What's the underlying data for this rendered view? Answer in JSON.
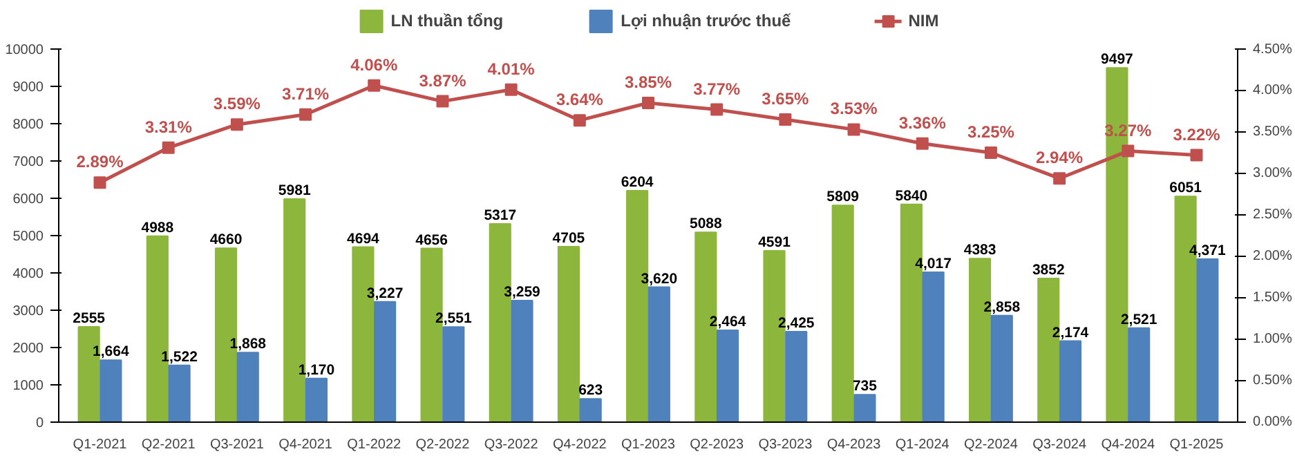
{
  "chart_data": {
    "type": "bar",
    "categories": [
      "Q1-2021",
      "Q2-2021",
      "Q3-2021",
      "Q4-2021",
      "Q1-2022",
      "Q2-2022",
      "Q3-2022",
      "Q4-2022",
      "Q1-2023",
      "Q2-2023",
      "Q3-2023",
      "Q4-2023",
      "Q1-2024",
      "Q2-2024",
      "Q3-2024",
      "Q4-2024",
      "Q1-2025"
    ],
    "series": [
      {
        "name": "LN thuần tổng",
        "color": "#8db63c",
        "values": [
          2555,
          4988,
          4660,
          5981,
          4694,
          4656,
          5317,
          4705,
          6204,
          5088,
          4591,
          5809,
          5840,
          4383,
          3852,
          9497,
          6051
        ],
        "value_labels": [
          "2555",
          "4988",
          "4660",
          "5981",
          "4694",
          "4656",
          "5317",
          "4705",
          "6204",
          "5088",
          "4591",
          "5809",
          "5840",
          "4383",
          "3852",
          "9497",
          "6051"
        ]
      },
      {
        "name": "Lợi nhuận trước thuế",
        "color": "#4f81bd",
        "values": [
          1664,
          1522,
          1868,
          1170,
          3227,
          2551,
          3259,
          623,
          3620,
          2464,
          2425,
          735,
          4017,
          2858,
          2174,
          2521,
          4371
        ],
        "value_labels": [
          "1,664",
          "1,522",
          "1,868",
          "1,170",
          "3,227",
          "2,551",
          "3,259",
          "623",
          "3,620",
          "2,464",
          "2,425",
          "735",
          "4,017",
          "2,858",
          "2,174",
          "2,521",
          "4,371"
        ]
      },
      {
        "name": "NIM",
        "type": "line",
        "axis": "y2",
        "color": "#c0504d",
        "values": [
          2.89,
          3.31,
          3.59,
          3.71,
          4.06,
          3.87,
          4.01,
          3.64,
          3.85,
          3.77,
          3.65,
          3.53,
          3.36,
          3.25,
          2.94,
          3.27,
          3.22
        ],
        "value_labels": [
          "2.89%",
          "3.31%",
          "3.59%",
          "3.71%",
          "4.06%",
          "3.87%",
          "4.01%",
          "3.64%",
          "3.85%",
          "3.77%",
          "3.65%",
          "3.53%",
          "3.36%",
          "3.25%",
          "2.94%",
          "3.27%",
          "3.22%"
        ]
      }
    ],
    "ylim": [
      0,
      10000
    ],
    "yticks": [
      0,
      1000,
      2000,
      3000,
      4000,
      5000,
      6000,
      7000,
      8000,
      9000,
      10000
    ],
    "y2lim": [
      0,
      4.5
    ],
    "y2ticks": [
      {
        "value": 0,
        "label": "0.00%"
      },
      {
        "value": 0.5,
        "label": "0.50%"
      },
      {
        "value": 1,
        "label": "1.00%"
      },
      {
        "value": 1.5,
        "label": "1.50%"
      },
      {
        "value": 2,
        "label": "2.00%"
      },
      {
        "value": 2.5,
        "label": "2.50%"
      },
      {
        "value": 3,
        "label": "3.00%"
      },
      {
        "value": 3.5,
        "label": "3.50%"
      },
      {
        "value": 4,
        "label": "4.00%"
      },
      {
        "value": 4.5,
        "label": "4.50%"
      }
    ],
    "marker": "square",
    "legend": "top",
    "grid": false
  }
}
